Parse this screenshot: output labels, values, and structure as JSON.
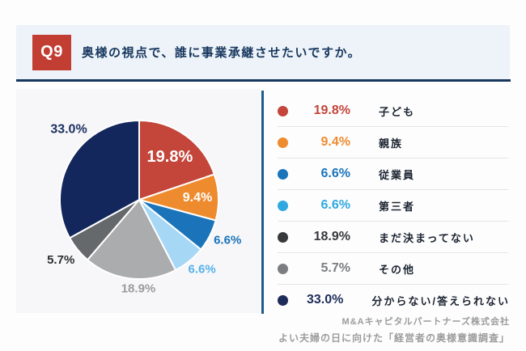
{
  "header": {
    "q_label": "Q9",
    "question": "奥様の視点で、誰に事業承継させたいですか。"
  },
  "chart_data": {
    "type": "pie",
    "start_angle_deg": 0,
    "direction": "clockwise",
    "title": "奥様の視点で、誰に事業承継させたいですか。",
    "slices": [
      {
        "label": "子ども",
        "value": 19.8,
        "color": "#c4453a",
        "label_color": "#ffffff"
      },
      {
        "label": "親族",
        "value": 9.4,
        "color": "#ee8b2e",
        "label_color": "#ffffff"
      },
      {
        "label": "従業員",
        "value": 6.6,
        "color": "#1b74b9",
        "label_color": "#1a74ba"
      },
      {
        "label": "第三者",
        "value": 6.6,
        "color": "#a6d8f6",
        "label_color": "#55b1e9"
      },
      {
        "label": "まだ決まってない",
        "value": 18.9,
        "color": "#abacae",
        "label_color": "#9b9b9d"
      },
      {
        "label": "その他",
        "value": 5.7,
        "color": "#66696c",
        "label_color": "#2d2f31"
      },
      {
        "label": "分からない/答えられない",
        "value": 33.0,
        "color": "#14275c",
        "label_color": "#1b2f5e"
      }
    ]
  },
  "legend": {
    "items": [
      {
        "pct": "19.8%",
        "label": "子ども",
        "color": "#c4453a"
      },
      {
        "pct": "9.4%",
        "label": "親族",
        "color": "#ee8b2e"
      },
      {
        "pct": "6.6%",
        "label": "従業員",
        "color": "#1a74ba"
      },
      {
        "pct": "6.6%",
        "label": "第三者",
        "color": "#2fa8e1"
      },
      {
        "pct": "18.9%",
        "label": "まだ決まってない",
        "color": "#37393c"
      },
      {
        "pct": "5.7%",
        "label": "その他",
        "color": "#7b7d80"
      },
      {
        "pct": "33.0%",
        "label": "分からない/答えられない",
        "color": "#1e2c5a"
      }
    ]
  },
  "footer": {
    "line1": "M&Aキャピタルパートナーズ株式会社",
    "line2": "よい夫婦の日に向けた「経営者の奥様意識調査」"
  }
}
